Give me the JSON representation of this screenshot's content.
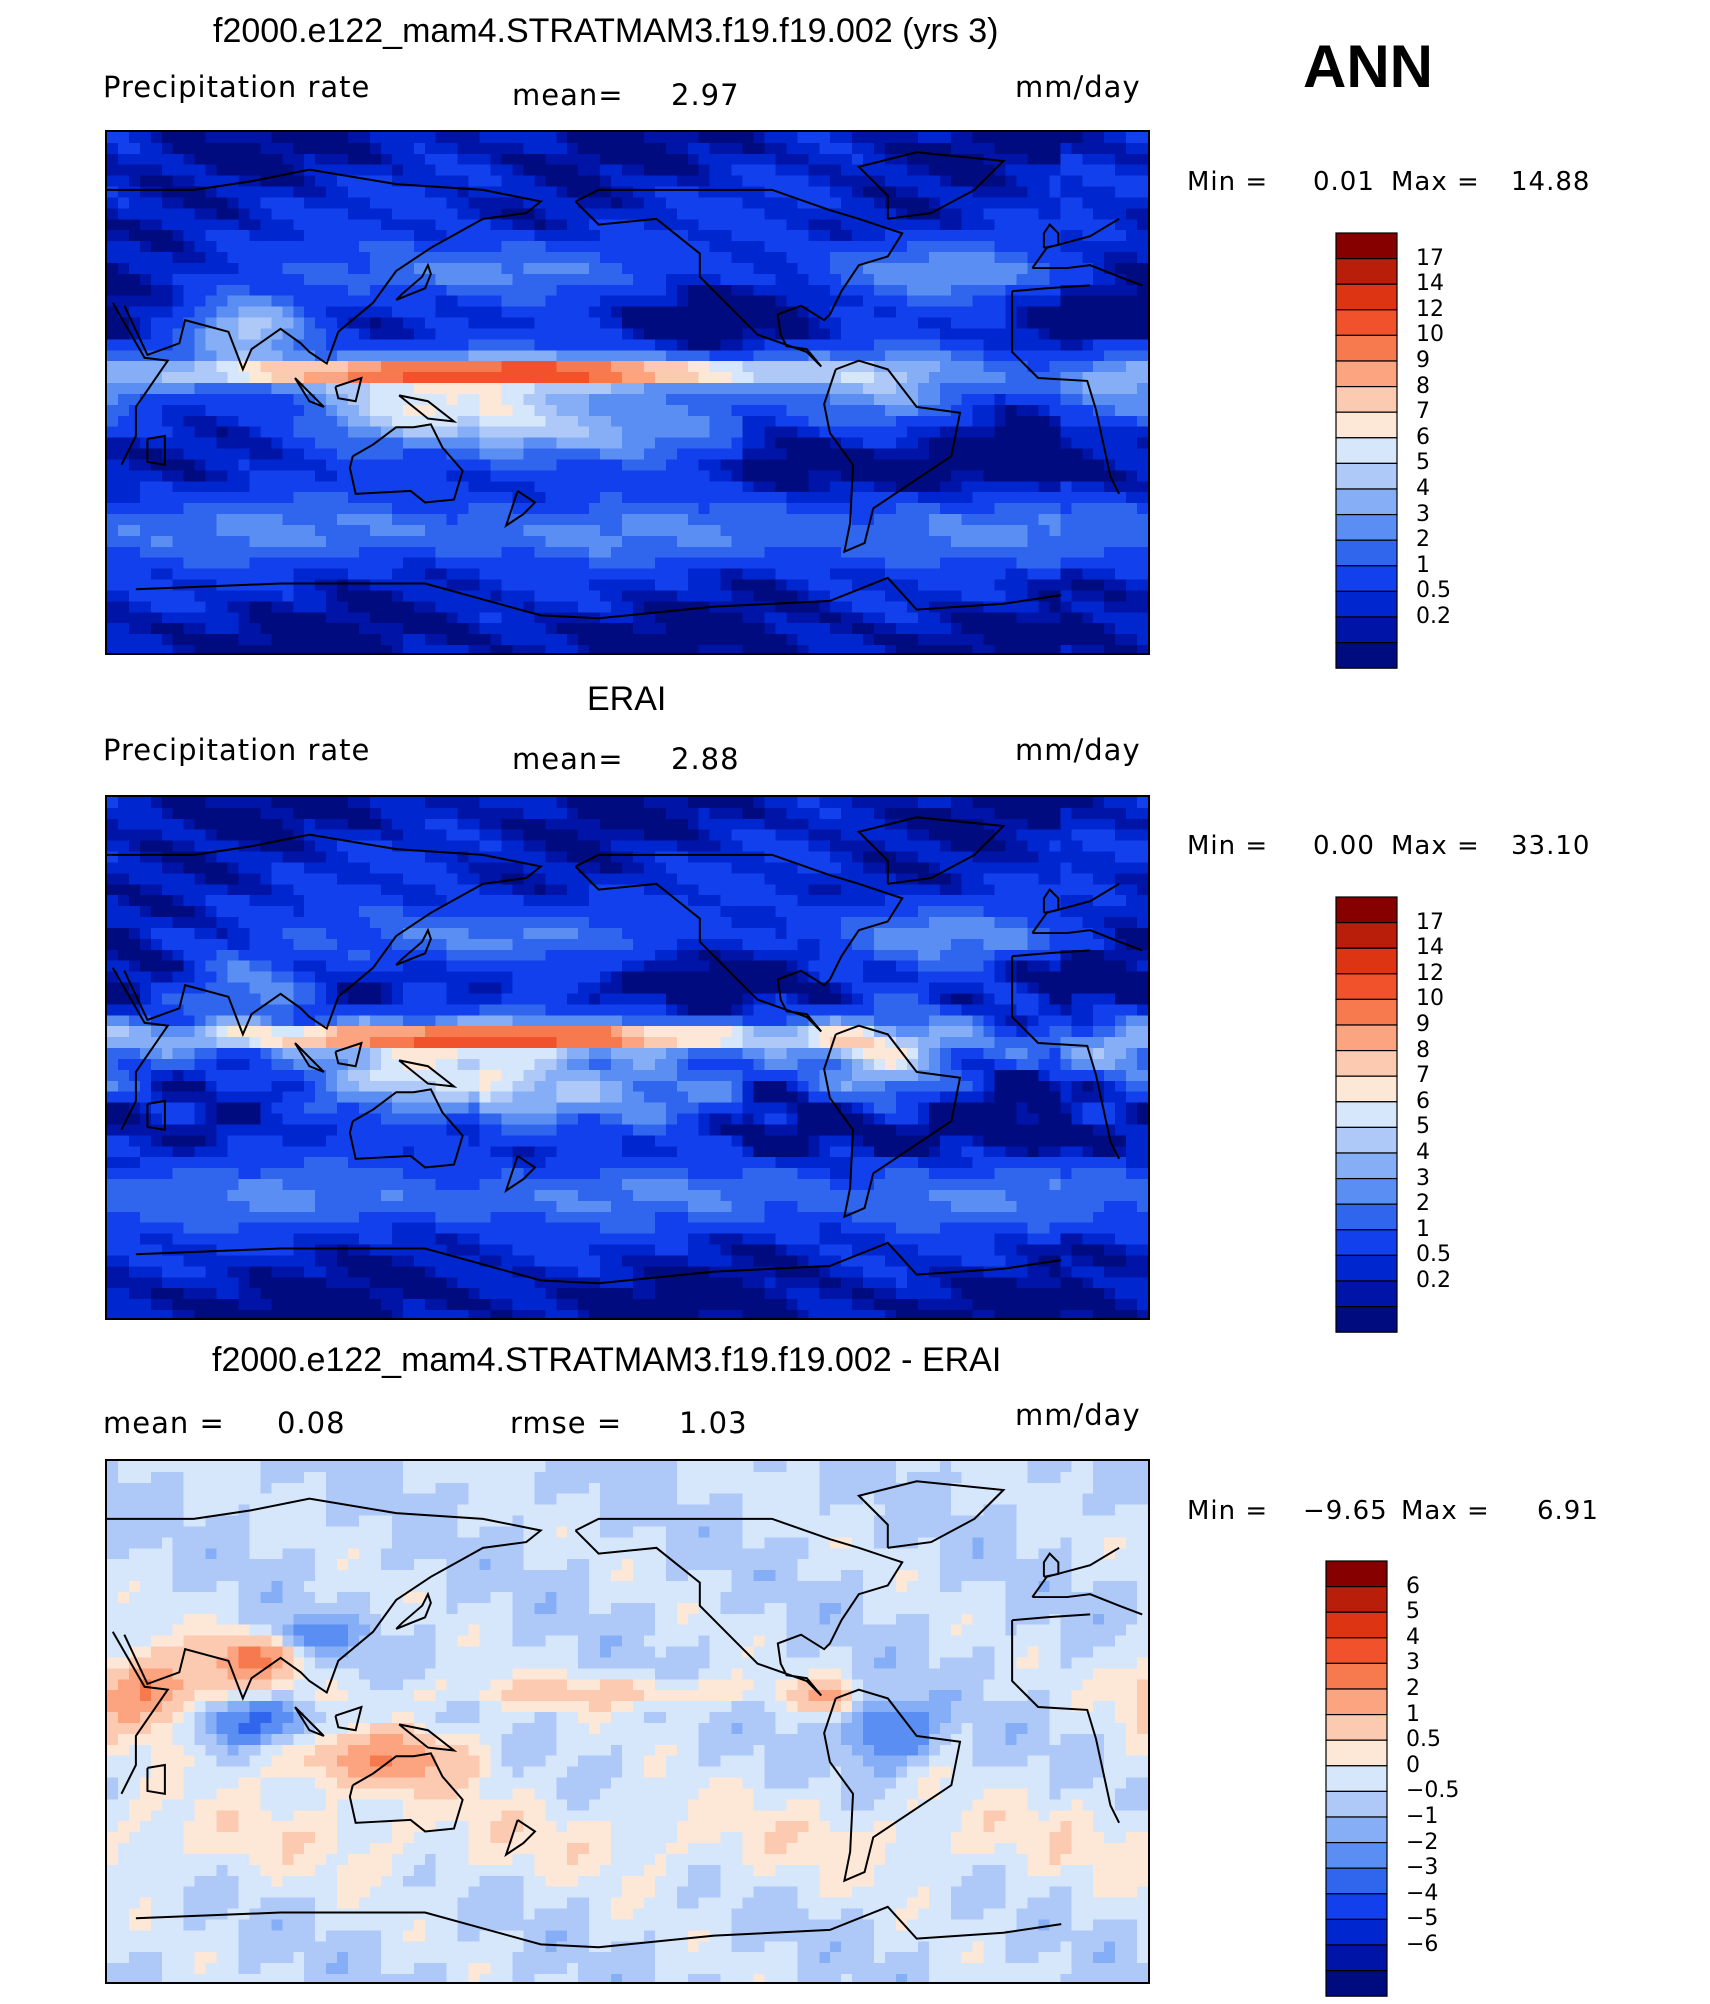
{
  "season": "ANN",
  "colors": {
    "precip": [
      "#000b7f",
      "#0015a8",
      "#0026d0",
      "#1240ec",
      "#3066ee",
      "#5a8ef2",
      "#85aef6",
      "#aec9f8",
      "#d6e6fb",
      "#fde8d8",
      "#fccab0",
      "#fba47f",
      "#f77a4e",
      "#f1522b",
      "#dd3414",
      "#b81e0a",
      "#860000"
    ],
    "diff": [
      "#000b7f",
      "#0015a8",
      "#0026d0",
      "#1240ec",
      "#3066ee",
      "#5a8ef2",
      "#85aef6",
      "#aec9f8",
      "#d6e6fb",
      "#fde8d8",
      "#fccab0",
      "#fba47f",
      "#f77a4e",
      "#f1522b",
      "#dd3414",
      "#b81e0a",
      "#860000"
    ]
  },
  "panels": [
    {
      "title": "f2000.e122_mam4.STRATMAM3.f19.f19.002 (yrs 3)",
      "left_label": "Precipitation  rate",
      "mid_key": "mean=",
      "mid_value": "2.97",
      "units": "mm/day",
      "min_label": "Min  =",
      "min_value": "0.01",
      "max_label": "Max  =",
      "max_value": "14.88",
      "colorbar_levels": [
        "17",
        "14",
        "12",
        "10",
        "9",
        "8",
        "7",
        "6",
        "5",
        "4",
        "3",
        "2",
        "1",
        "0.5",
        "0.2"
      ],
      "field": "model",
      "palette": "precip"
    },
    {
      "title": "ERAI",
      "left_label": "Precipitation  rate",
      "mid_key": "mean=",
      "mid_value": "2.88",
      "units": "mm/day",
      "min_label": "Min  =",
      "min_value": "0.00",
      "max_label": "Max  =",
      "max_value": "33.10",
      "colorbar_levels": [
        "17",
        "14",
        "12",
        "10",
        "9",
        "8",
        "7",
        "6",
        "5",
        "4",
        "3",
        "2",
        "1",
        "0.5",
        "0.2"
      ],
      "field": "obs",
      "palette": "precip"
    },
    {
      "title": "f2000.e122_mam4.STRATMAM3.f19.f19.002 - ERAI",
      "left_key": "mean  =",
      "left_value": "0.08",
      "mid_key": "rmse  =",
      "mid_value": "1.03",
      "units": "mm/day",
      "min_label": "Min  =",
      "min_value": "−9.65",
      "max_label": "Max  =",
      "max_value": "6.91",
      "colorbar_levels": [
        "6",
        "5",
        "4",
        "3",
        "2",
        "1",
        "0.5",
        "0",
        "−0.5",
        "−1",
        "−2",
        "−3",
        "−4",
        "−5",
        "−6"
      ],
      "field": "diff",
      "palette": "diff"
    }
  ]
}
